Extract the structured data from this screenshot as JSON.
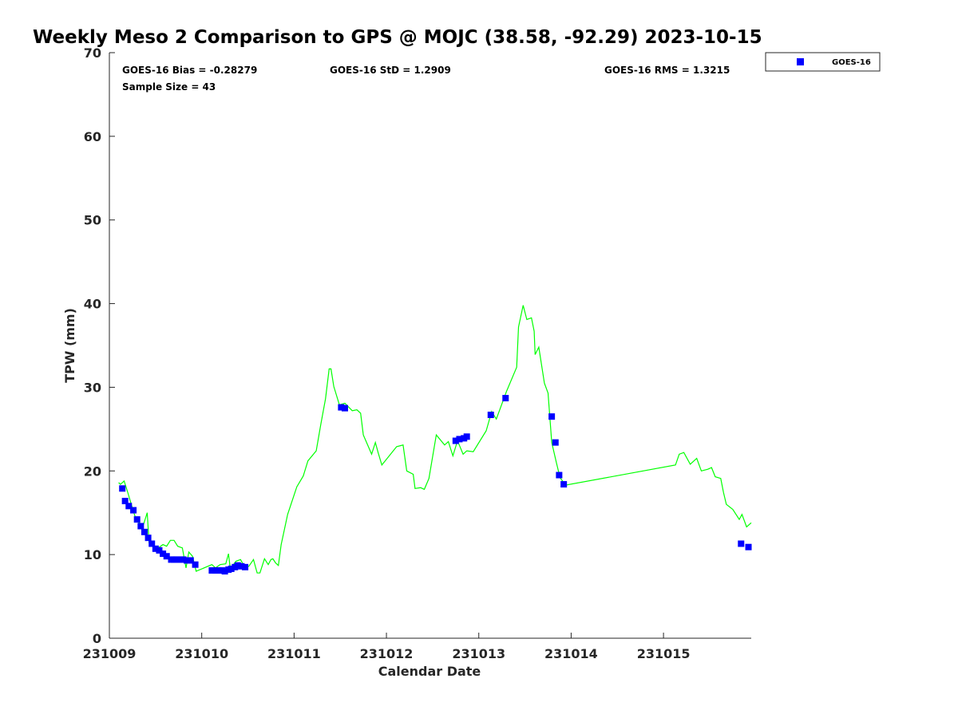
{
  "chart_data": {
    "type": "scatter",
    "title": "Weekly Meso 2 Comparison to GPS @ MOJC (38.58, -92.29) 2023-10-15",
    "xlabel": "Calendar Date",
    "ylabel": "TPW (mm)",
    "x_unit": "days since 231009",
    "xlim": [
      0,
      6.95
    ],
    "ylim": [
      0,
      70
    ],
    "x_ticks": [
      0,
      1,
      2,
      3,
      4,
      5,
      6
    ],
    "x_tick_labels": [
      "231009",
      "231010",
      "231011",
      "231012",
      "231013",
      "231014",
      "231015"
    ],
    "y_ticks": [
      0,
      10,
      20,
      30,
      40,
      50,
      60,
      70
    ],
    "y_tick_labels": [
      "0",
      "10",
      "20",
      "30",
      "40",
      "50",
      "60",
      "70"
    ],
    "grid": false,
    "legend": {
      "placement": "outside-top-right",
      "entries": [
        "GOES-16"
      ]
    },
    "stats": {
      "bias": "GOES-16 Bias = -0.28279",
      "std": "GOES-16 StD = 1.2909",
      "rms": "GOES-16 RMS = 1.3215",
      "sample": "Sample Size = 43"
    },
    "series": [
      {
        "name": "GPS",
        "kind": "line",
        "color": "#00ff00",
        "x": [
          0.1,
          0.12,
          0.16,
          0.2,
          0.24,
          0.28,
          0.32,
          0.37,
          0.41,
          0.43,
          0.48,
          0.53,
          0.58,
          0.62,
          0.66,
          0.7,
          0.74,
          0.79,
          0.83,
          0.86,
          0.9,
          0.94,
          1.11,
          1.15,
          1.2,
          1.26,
          1.29,
          1.31,
          1.37,
          1.42,
          1.47,
          1.51,
          1.56,
          1.6,
          1.63,
          1.68,
          1.72,
          1.75,
          1.77,
          1.8,
          1.83,
          1.86,
          1.89,
          1.93,
          2.03,
          2.1,
          2.15,
          2.24,
          2.29,
          2.34,
          2.38,
          2.4,
          2.43,
          2.49,
          2.55,
          2.63,
          2.68,
          2.72,
          2.75,
          2.84,
          2.88,
          2.91,
          2.95,
          3.11,
          3.18,
          3.22,
          3.29,
          3.31,
          3.37,
          3.41,
          3.46,
          3.54,
          3.63,
          3.67,
          3.72,
          3.77,
          3.83,
          3.87,
          3.94,
          4.08,
          4.14,
          4.19,
          4.3,
          4.41,
          4.43,
          4.48,
          4.52,
          4.57,
          4.6,
          4.61,
          4.65,
          4.71,
          4.75,
          4.79,
          4.84,
          4.88,
          4.92,
          4.94,
          6.13,
          6.17,
          6.22,
          6.29,
          6.36,
          6.41,
          6.48,
          6.52,
          6.56,
          6.62,
          6.65,
          6.68,
          6.75,
          6.82,
          6.85,
          6.9,
          6.95
        ],
        "y": [
          18.6,
          18.4,
          18.8,
          17.4,
          15.9,
          14.5,
          13.8,
          13.6,
          15.0,
          11.4,
          11.0,
          10.8,
          11.2,
          11.0,
          11.7,
          11.7,
          11.0,
          10.8,
          8.4,
          10.3,
          9.8,
          8.0,
          8.8,
          8.4,
          8.8,
          8.9,
          10.1,
          8.3,
          9.2,
          9.4,
          8.4,
          8.6,
          9.4,
          7.8,
          7.8,
          9.5,
          8.8,
          9.4,
          9.5,
          9.0,
          8.7,
          11.2,
          12.7,
          14.8,
          18.1,
          19.4,
          21.2,
          22.4,
          25.6,
          28.6,
          32.2,
          32.2,
          30.1,
          27.9,
          28.1,
          27.2,
          27.3,
          26.9,
          24.3,
          22.0,
          23.4,
          22.2,
          20.7,
          22.9,
          23.1,
          20.0,
          19.6,
          17.9,
          18.0,
          17.8,
          19.1,
          24.3,
          23.1,
          23.5,
          21.8,
          23.6,
          22.0,
          22.4,
          22.3,
          24.8,
          27.1,
          26.2,
          29.5,
          32.4,
          37.2,
          39.8,
          38.1,
          38.3,
          36.7,
          33.9,
          34.8,
          30.5,
          29.3,
          23.4,
          21.0,
          19.2,
          18.6,
          18.3,
          20.7,
          22.0,
          22.2,
          20.8,
          21.5,
          20.0,
          20.2,
          20.4,
          19.3,
          19.1,
          17.4,
          16.0,
          15.4,
          14.2,
          14.8,
          13.3,
          13.8
        ]
      },
      {
        "name": "GOES-16",
        "kind": "scatter",
        "color": "#0000ff",
        "x": [
          0.14,
          0.17,
          0.21,
          0.26,
          0.3,
          0.34,
          0.38,
          0.42,
          0.46,
          0.5,
          0.54,
          0.58,
          0.62,
          0.67,
          0.7,
          0.73,
          0.77,
          0.8,
          0.84,
          0.88,
          0.93,
          1.11,
          1.15,
          1.18,
          1.22,
          1.25,
          1.29,
          1.32,
          1.36,
          1.39,
          1.43,
          1.47,
          2.51,
          2.55,
          3.75,
          3.79,
          3.84,
          3.87,
          4.13,
          4.29,
          4.79,
          4.83,
          4.87,
          4.92,
          6.84,
          6.92
        ],
        "y": [
          17.9,
          16.4,
          15.8,
          15.3,
          14.2,
          13.4,
          12.7,
          12.0,
          11.3,
          10.7,
          10.5,
          10.1,
          9.8,
          9.4,
          9.4,
          9.4,
          9.4,
          9.4,
          9.3,
          9.3,
          8.8,
          8.1,
          8.1,
          8.1,
          8.1,
          8.0,
          8.2,
          8.3,
          8.5,
          8.7,
          8.6,
          8.5,
          27.6,
          27.5,
          23.6,
          23.8,
          23.9,
          24.1,
          26.7,
          28.7,
          26.5,
          23.4,
          19.5,
          18.4,
          11.3,
          10.9
        ]
      }
    ]
  }
}
